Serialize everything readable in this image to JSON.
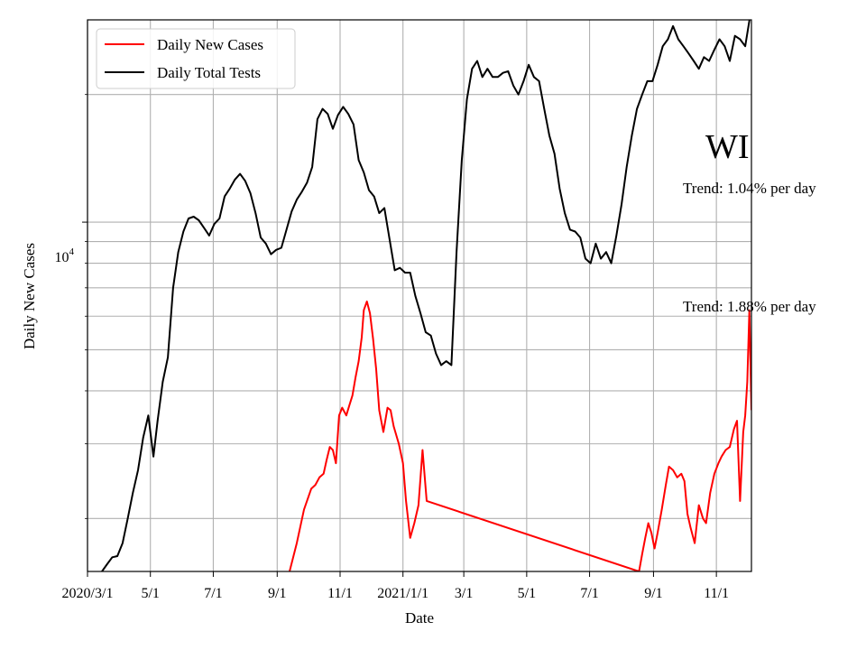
{
  "chart_data": {
    "type": "line",
    "xlabel": "Date",
    "ylabel": "Daily New Cases",
    "x_tick_labels": [
      "2020/3/1",
      "5/1",
      "7/1",
      "9/1",
      "11/1",
      "2021/1/1",
      "3/1",
      "5/1",
      "7/1",
      "9/1",
      "11/1"
    ],
    "x_ticks": [
      "2020-03-01",
      "2020-05-01",
      "2020-07-01",
      "2020-09-01",
      "2020-11-01",
      "2021-01-01",
      "2021-03-01",
      "2021-05-01",
      "2021-07-01",
      "2021-09-01",
      "2021-11-01"
    ],
    "xlim": [
      "2020-03-01",
      "2021-12-05"
    ],
    "y_scale": "log",
    "ylim": [
      1500,
      30000
    ],
    "y_tick_label_base": "10",
    "y_tick_label_exponent": "4",
    "y_major_ticks": [
      10000
    ],
    "y_minor_ticks": [
      2000,
      3000,
      4000,
      5000,
      6000,
      7000,
      8000,
      9000,
      20000
    ],
    "grid": true,
    "legend_position": "top-left",
    "colors": {
      "Daily New Cases": "#ff0000",
      "Daily Total Tests": "#000000"
    },
    "series": [
      {
        "name": "Daily New Cases",
        "x": [
          "2020-09-13",
          "2020-09-20",
          "2020-09-27",
          "2020-10-04",
          "2020-10-08",
          "2020-10-12",
          "2020-10-16",
          "2020-10-19",
          "2020-10-22",
          "2020-10-25",
          "2020-10-28",
          "2020-10-31",
          "2020-11-03",
          "2020-11-07",
          "2020-11-10",
          "2020-11-13",
          "2020-11-16",
          "2020-11-19",
          "2020-11-22",
          "2020-11-24",
          "2020-11-27",
          "2020-11-30",
          "2020-12-03",
          "2020-12-06",
          "2020-12-09",
          "2020-12-13",
          "2020-12-17",
          "2020-12-20",
          "2020-12-23",
          "2020-12-28",
          "2021-01-01",
          "2021-01-04",
          "2021-01-08",
          "2021-01-12",
          "2021-01-16",
          "2021-01-20",
          "2021-01-24",
          "2021-08-18",
          "2021-08-21",
          "2021-08-24",
          "2021-08-27",
          "2021-08-30",
          "2021-09-02",
          "2021-09-05",
          "2021-09-09",
          "2021-09-13",
          "2021-09-16",
          "2021-09-20",
          "2021-09-24",
          "2021-09-28",
          "2021-10-01",
          "2021-10-04",
          "2021-10-07",
          "2021-10-11",
          "2021-10-15",
          "2021-10-19",
          "2021-10-22",
          "2021-10-26",
          "2021-10-30",
          "2021-11-03",
          "2021-11-06",
          "2021-11-10",
          "2021-11-14",
          "2021-11-18",
          "2021-11-21",
          "2021-11-24",
          "2021-11-27",
          "2021-11-29",
          "2021-12-01",
          "2021-12-03",
          "2021-12-05"
        ],
        "y": [
          1500,
          1750,
          2100,
          2350,
          2400,
          2500,
          2550,
          2750,
          2950,
          2900,
          2700,
          3500,
          3650,
          3500,
          3700,
          3900,
          4300,
          4700,
          5350,
          6200,
          6500,
          6100,
          5300,
          4500,
          3600,
          3200,
          3650,
          3600,
          3300,
          3000,
          2700,
          2200,
          1800,
          1950,
          2150,
          2900,
          2200,
          1500,
          1650,
          1800,
          1950,
          1850,
          1700,
          1850,
          2100,
          2400,
          2650,
          2600,
          2500,
          2550,
          2450,
          2050,
          1900,
          1750,
          2150,
          2000,
          1950,
          2300,
          2550,
          2700,
          2800,
          2900,
          2950,
          3250,
          3400,
          2200,
          3200,
          3500,
          4200,
          6200,
          3600
        ]
      },
      {
        "name": "Daily Total Tests",
        "x": [
          "2020-03-15",
          "2020-03-20",
          "2020-03-25",
          "2020-03-30",
          "2020-04-04",
          "2020-04-09",
          "2020-04-14",
          "2020-04-19",
          "2020-04-24",
          "2020-04-29",
          "2020-05-04",
          "2020-05-08",
          "2020-05-13",
          "2020-05-18",
          "2020-05-23",
          "2020-05-28",
          "2020-06-02",
          "2020-06-07",
          "2020-06-12",
          "2020-06-17",
          "2020-06-22",
          "2020-06-27",
          "2020-07-02",
          "2020-07-07",
          "2020-07-12",
          "2020-07-17",
          "2020-07-22",
          "2020-07-27",
          "2020-08-01",
          "2020-08-06",
          "2020-08-11",
          "2020-08-16",
          "2020-08-21",
          "2020-08-26",
          "2020-08-31",
          "2020-09-05",
          "2020-09-10",
          "2020-09-15",
          "2020-09-20",
          "2020-09-25",
          "2020-09-30",
          "2020-10-05",
          "2020-10-10",
          "2020-10-15",
          "2020-10-20",
          "2020-10-25",
          "2020-10-30",
          "2020-11-04",
          "2020-11-09",
          "2020-11-14",
          "2020-11-19",
          "2020-11-24",
          "2020-11-29",
          "2020-12-04",
          "2020-12-09",
          "2020-12-14",
          "2020-12-19",
          "2020-12-24",
          "2020-12-29",
          "2021-01-03",
          "2021-01-08",
          "2021-01-13",
          "2021-01-18",
          "2021-01-23",
          "2021-01-28",
          "2021-02-02",
          "2021-02-07",
          "2021-02-12",
          "2021-02-17",
          "2021-02-22",
          "2021-02-27",
          "2021-03-04",
          "2021-03-09",
          "2021-03-14",
          "2021-03-19",
          "2021-03-24",
          "2021-03-29",
          "2021-04-03",
          "2021-04-08",
          "2021-04-13",
          "2021-04-18",
          "2021-04-23",
          "2021-04-28",
          "2021-05-03",
          "2021-05-08",
          "2021-05-13",
          "2021-05-18",
          "2021-05-23",
          "2021-05-28",
          "2021-06-02",
          "2021-06-07",
          "2021-06-12",
          "2021-06-17",
          "2021-06-22",
          "2021-06-27",
          "2021-07-02",
          "2021-07-07",
          "2021-07-12",
          "2021-07-17",
          "2021-07-22",
          "2021-07-27",
          "2021-08-01",
          "2021-08-06",
          "2021-08-11",
          "2021-08-16",
          "2021-08-21",
          "2021-08-26",
          "2021-08-31",
          "2021-09-05",
          "2021-09-10",
          "2021-09-15",
          "2021-09-20",
          "2021-09-25",
          "2021-09-30",
          "2021-10-05",
          "2021-10-10",
          "2021-10-15",
          "2021-10-20",
          "2021-10-25",
          "2021-10-30",
          "2021-11-04",
          "2021-11-09",
          "2021-11-14",
          "2021-11-19",
          "2021-11-24",
          "2021-11-29",
          "2021-12-05"
        ],
        "y": [
          1500,
          1560,
          1620,
          1630,
          1750,
          2000,
          2300,
          2600,
          3100,
          3500,
          2800,
          3400,
          4200,
          4800,
          7000,
          8500,
          9500,
          10200,
          10300,
          10100,
          9700,
          9300,
          9900,
          10200,
          11500,
          12000,
          12600,
          13000,
          12500,
          11700,
          10500,
          9200,
          8900,
          8400,
          8600,
          8700,
          9600,
          10600,
          11300,
          11800,
          12400,
          13500,
          17500,
          18500,
          18000,
          16600,
          17900,
          18700,
          18000,
          17000,
          14000,
          13100,
          11900,
          11500,
          10500,
          10800,
          9100,
          7700,
          7800,
          7600,
          7600,
          6700,
          6100,
          5500,
          5400,
          4900,
          4600,
          4700,
          4600,
          8500,
          14000,
          19500,
          23000,
          24000,
          22000,
          23000,
          22000,
          22000,
          22500,
          22700,
          21000,
          20000,
          21500,
          23500,
          22000,
          21500,
          18500,
          16000,
          14500,
          12000,
          10500,
          9600,
          9500,
          9200,
          8200,
          8000,
          8900,
          8200,
          8500,
          8000,
          9300,
          11000,
          13500,
          16000,
          18500,
          20000,
          21500,
          21500,
          23500,
          26000,
          27000,
          29000,
          27000,
          26000,
          25000,
          24000,
          23000,
          24500,
          24000,
          25500,
          27000,
          26000,
          24000,
          27500,
          27000,
          26000,
          32000
        ]
      }
    ],
    "annotations": [
      {
        "text": "WI",
        "style": "large"
      },
      {
        "text": "Trend: 1.04% per day",
        "style": "normal"
      },
      {
        "text": "Trend: 1.88% per day",
        "style": "normal"
      }
    ]
  }
}
